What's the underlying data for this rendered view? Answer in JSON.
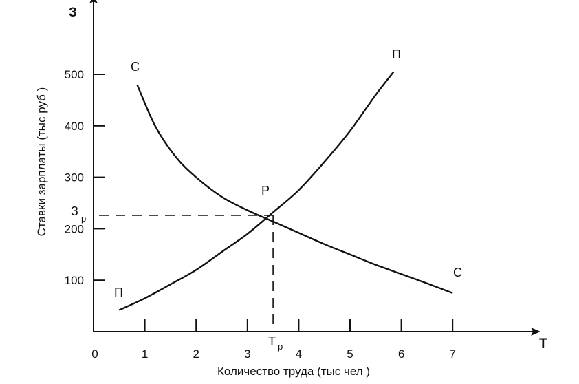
{
  "chart_data": {
    "type": "line",
    "x_axis": {
      "symbol": "Т",
      "label": "Количество труда (тыс чел )",
      "ticks": [
        "0",
        "1",
        "2",
        "3",
        "4",
        "5",
        "6",
        "7"
      ],
      "range": [
        0,
        8.5
      ]
    },
    "y_axis": {
      "symbol": "З",
      "label": "Ставки зарплаты (тыс руб )",
      "ticks": [
        "100",
        "200",
        "300",
        "400",
        "500"
      ],
      "range": [
        0,
        640
      ]
    },
    "series": [
      {
        "name": "С",
        "end_label": "С",
        "x": [
          0.85,
          1.2,
          1.6,
          2.0,
          2.5,
          3.0,
          3.5,
          4.0,
          4.5,
          5.0,
          5.5,
          6.0,
          6.5,
          7.0
        ],
        "y": [
          480,
          400,
          340,
          300,
          262,
          236,
          214,
          192,
          170,
          150,
          130,
          112,
          94,
          75
        ]
      },
      {
        "name": "П",
        "end_label": "П",
        "x": [
          0.5,
          1.0,
          1.5,
          2.0,
          2.5,
          3.0,
          3.5,
          4.0,
          4.5,
          5.0,
          5.5,
          5.85
        ],
        "y": [
          42,
          65,
          92,
          120,
          155,
          190,
          232,
          275,
          330,
          390,
          460,
          505
        ]
      }
    ],
    "equilibrium": {
      "point_label": "P",
      "x_label": "Т",
      "x_label_sub": "p",
      "y_label": "З",
      "y_label_sub": "p",
      "x": 3.5,
      "y": 226
    }
  }
}
